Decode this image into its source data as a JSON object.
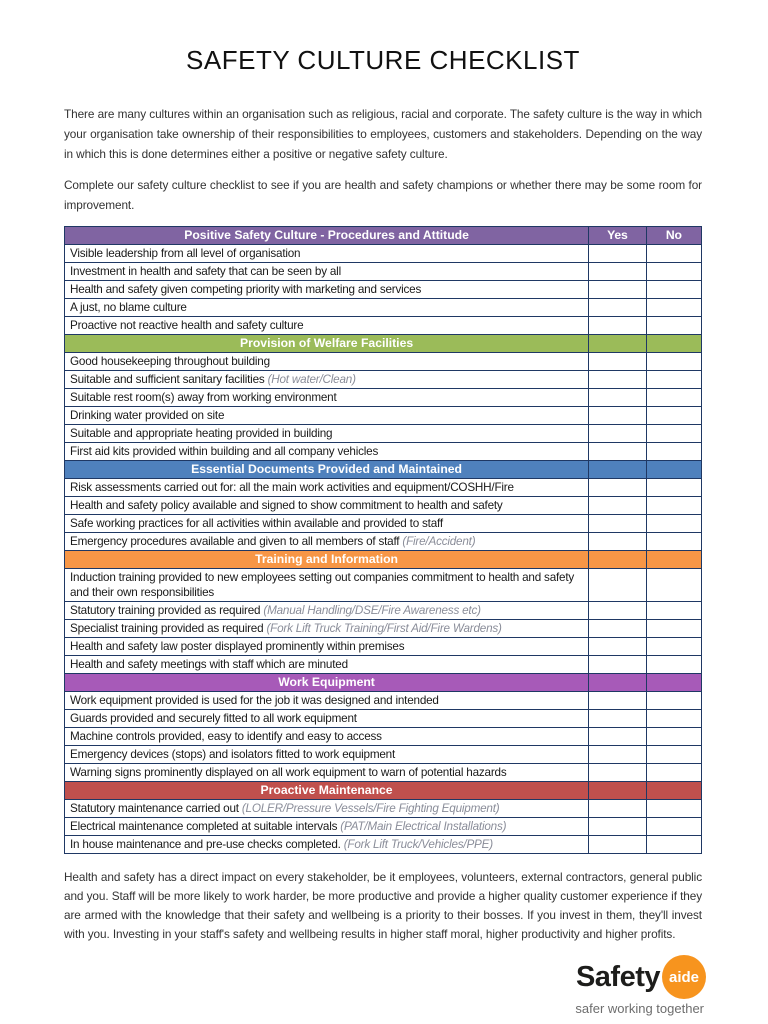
{
  "title": "SAFETY CULTURE CHECKLIST",
  "intro": {
    "p1": "There are many cultures within an organisation such as religious, racial and corporate. The safety culture is the way in which your organisation take ownership of their responsibilities to employees, customers and stakeholders. Depending on the way in which this is done determines either a positive or negative safety culture.",
    "p2": "Complete our safety culture checklist to see if you are health and safety champions or whether there may be some room for improvement."
  },
  "table": {
    "yes_label": "Yes",
    "no_label": "No",
    "border_color": "#1F3864",
    "sections": [
      {
        "title": "Positive Safety Culture - Procedures and Attitude",
        "color": "#8064A2",
        "show_yes_no": true,
        "rows": [
          {
            "text": "Visible leadership from all level of organisation"
          },
          {
            "text": "Investment in health and safety that can be seen by all"
          },
          {
            "text": "Health and safety given competing priority with marketing and services"
          },
          {
            "text": "A just, no blame culture"
          },
          {
            "text": "Proactive not reactive health and safety culture"
          }
        ]
      },
      {
        "title": "Provision of Welfare Facilities",
        "color": "#9BBB59",
        "show_yes_no": false,
        "rows": [
          {
            "text": "Good housekeeping throughout building"
          },
          {
            "text": "Suitable and sufficient sanitary facilities",
            "note": "(Hot water/Clean)"
          },
          {
            "text": "Suitable rest room(s) away from working environment"
          },
          {
            "text": "Drinking water provided on site"
          },
          {
            "text": "Suitable and appropriate heating provided in building"
          },
          {
            "text": "First aid kits provided within building and all company vehicles"
          }
        ]
      },
      {
        "title": "Essential Documents Provided and Maintained",
        "color": "#4F81BD",
        "show_yes_no": false,
        "rows": [
          {
            "text": "Risk assessments carried out for: all the main work activities and equipment/COSHH/Fire"
          },
          {
            "text": "Health and safety policy available and signed to show commitment to health and safety"
          },
          {
            "text": "Safe working practices for all activities within available and provided to staff"
          },
          {
            "text": "Emergency procedures available and given to all members of staff",
            "note": "(Fire/Accident)"
          }
        ]
      },
      {
        "title": "Training and Information",
        "color": "#F79646",
        "show_yes_no": false,
        "rows": [
          {
            "text": "Induction training provided to new employees setting out companies commitment to health and safety and their own responsibilities",
            "multiline": true
          },
          {
            "text": "Statutory training provided as required",
            "note": "(Manual Handling/DSE/Fire Awareness etc)"
          },
          {
            "text": "Specialist training provided as required",
            "note": "(Fork Lift Truck Training/First Aid/Fire Wardens)"
          },
          {
            "text": "Health and safety law poster displayed prominently within premises"
          },
          {
            "text": "Health and safety meetings with staff which are minuted"
          }
        ]
      },
      {
        "title": "Work Equipment",
        "color": "#A75AB8",
        "show_yes_no": false,
        "rows": [
          {
            "text": "Work equipment provided is used for the job it was designed and intended"
          },
          {
            "text": "Guards provided and securely fitted to all work equipment"
          },
          {
            "text": "Machine controls provided, easy to identify and easy to access"
          },
          {
            "text": "Emergency devices (stops) and isolators fitted to work equipment"
          },
          {
            "text": "Warning signs prominently displayed on all work equipment to warn of potential hazards"
          }
        ]
      },
      {
        "title": "Proactive Maintenance",
        "color": "#C0504D",
        "show_yes_no": false,
        "rows": [
          {
            "text": "Statutory maintenance carried out",
            "note": "(LOLER/Pressure Vessels/Fire Fighting Equipment)"
          },
          {
            "text": "Electrical maintenance completed at suitable intervals",
            "note": "(PAT/Main Electrical Installations)"
          },
          {
            "text": "In house maintenance and pre-use checks completed.",
            "note": "(Fork Lift Truck/Vehicles/PPE)"
          }
        ]
      }
    ]
  },
  "outro": "Health and safety has a direct impact on every stakeholder, be it employees, volunteers, external contractors, general public and you. Staff will be more likely to work harder, be more productive and provide a higher quality customer experience if they are armed with the knowledge that their safety and wellbeing is a priority to their bosses. If you invest in them, they'll invest with you. Investing in your staff's safety and wellbeing results in higher staff moral, higher productivity and higher profits.",
  "logo": {
    "safety": "Safety",
    "aide": "aide",
    "tagline": "safer working together",
    "circle_color": "#F7941E"
  }
}
